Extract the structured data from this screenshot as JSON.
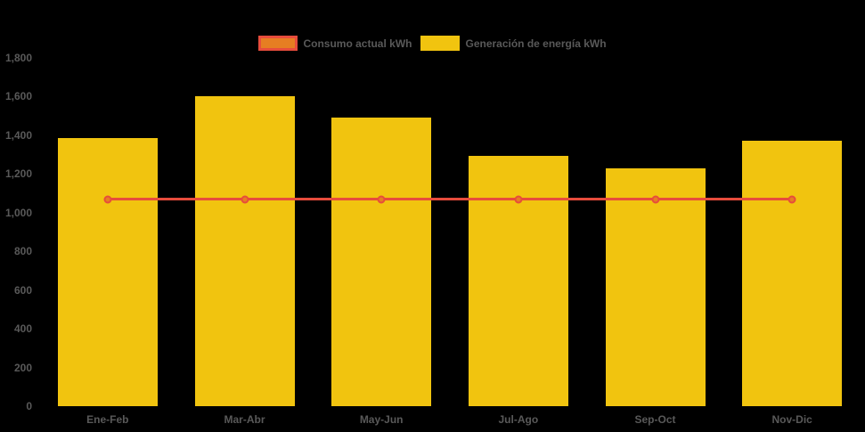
{
  "chart_data": {
    "type": "bar",
    "categories": [
      "Ene-Feb",
      "Mar-Abr",
      "May-Jun",
      "Jul-Ago",
      "Sep-Oct",
      "Nov-Dic"
    ],
    "series": [
      {
        "name": "Consumo actual kWh",
        "type": "line",
        "values": [
          1070,
          1070,
          1070,
          1070,
          1070,
          1070
        ],
        "line_color": "#e74c3c",
        "marker_fill": "#e67e22"
      },
      {
        "name": "Generación de energía kWh",
        "type": "bar",
        "values": [
          1385,
          1600,
          1490,
          1295,
          1230,
          1370
        ],
        "color": "#f1c40f"
      }
    ],
    "title": "",
    "xlabel": "",
    "ylabel": "",
    "ylim": [
      0,
      1800
    ],
    "ytick_step": 200,
    "ytick_labels": [
      "0",
      "200",
      "400",
      "600",
      "800",
      "1,000",
      "1,200",
      "1,400",
      "1,600",
      "1,800"
    ],
    "legend_position": "top-center",
    "grid": false,
    "colors": {
      "background": "#000000",
      "text": "#595959",
      "bar": "#f1c40f",
      "line": "#e74c3c",
      "marker_fill": "#e67e22"
    }
  }
}
